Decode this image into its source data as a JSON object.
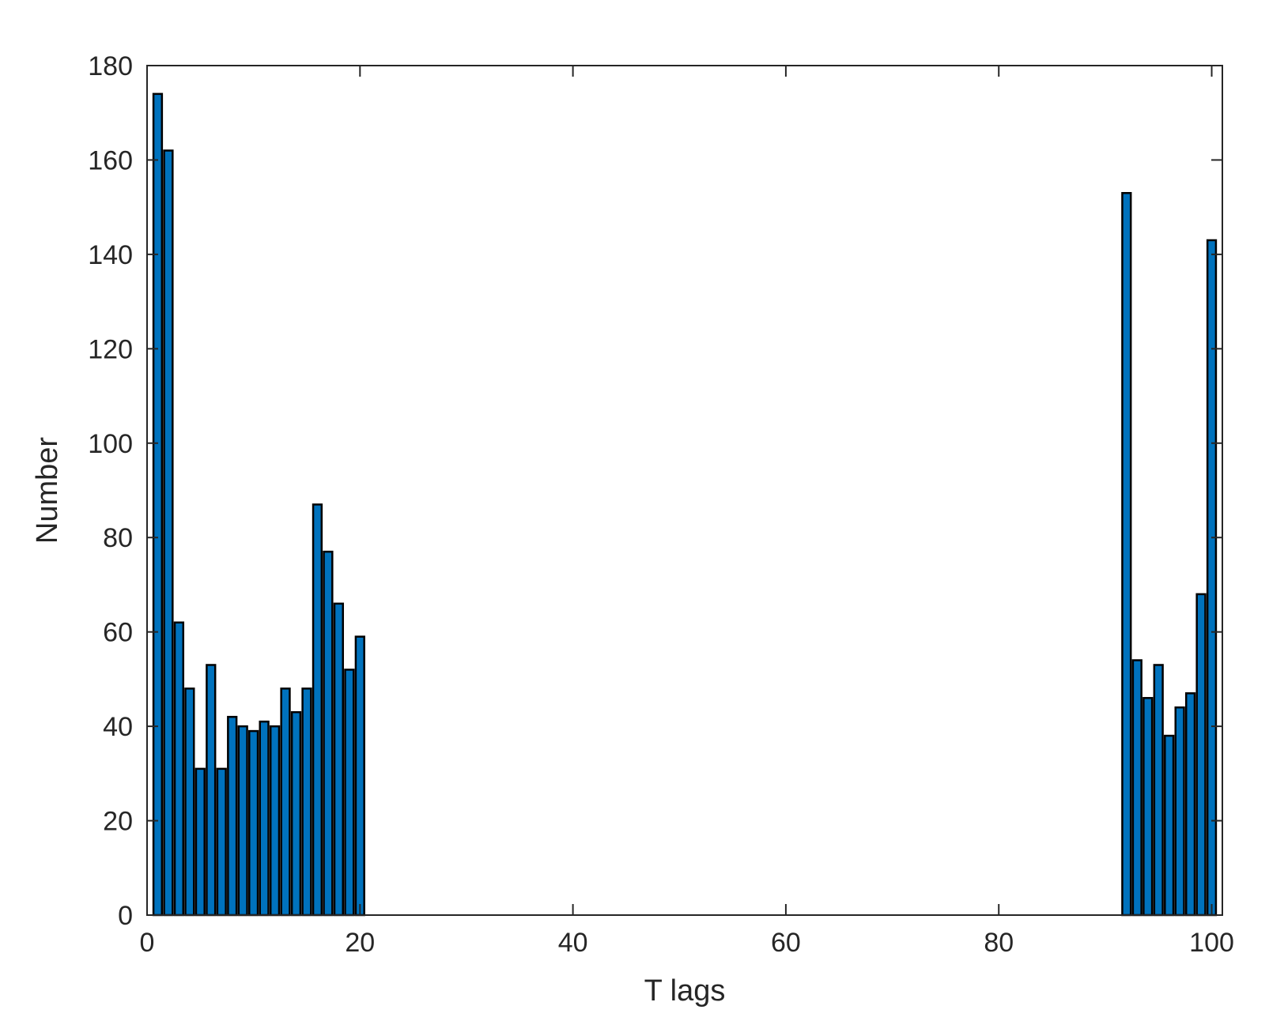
{
  "chart_data": {
    "type": "bar",
    "title": "",
    "xlabel": "T lags",
    "ylabel": "Number",
    "xlim": [
      0,
      101
    ],
    "ylim": [
      0,
      180
    ],
    "xticks": [
      0,
      20,
      40,
      60,
      80,
      100
    ],
    "yticks": [
      0,
      20,
      40,
      60,
      80,
      100,
      120,
      140,
      160,
      180
    ],
    "grid": false,
    "bar_color": "#0072BD",
    "edge_color": "#000000",
    "bar_width": 0.8,
    "x": [
      1,
      2,
      3,
      4,
      5,
      6,
      7,
      8,
      9,
      10,
      11,
      12,
      13,
      14,
      15,
      16,
      17,
      18,
      19,
      20,
      92,
      93,
      94,
      95,
      96,
      97,
      98,
      99,
      100
    ],
    "values": [
      174,
      162,
      62,
      48,
      31,
      53,
      31,
      42,
      40,
      39,
      41,
      40,
      48,
      43,
      48,
      87,
      77,
      66,
      52,
      59,
      153,
      54,
      46,
      53,
      38,
      44,
      47,
      68,
      143
    ]
  }
}
